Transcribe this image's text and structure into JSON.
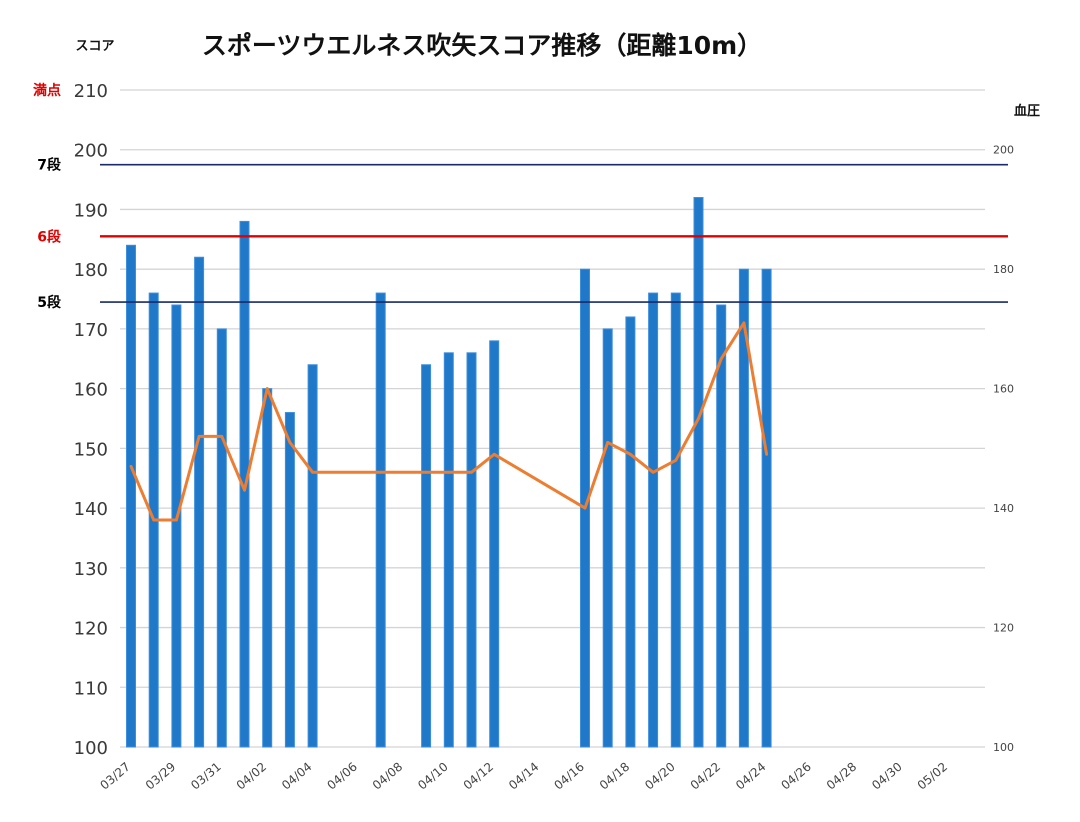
{
  "chart_data": {
    "type": "bar",
    "title": "スポーツウエルネス吹矢スコア推移（距離10m）",
    "ylabel": "スコア",
    "y2label": "血圧",
    "ylim": [
      100,
      210
    ],
    "y2lim": [
      100,
      210
    ],
    "yticks": [
      100,
      110,
      120,
      130,
      140,
      150,
      160,
      170,
      180,
      190,
      200,
      210
    ],
    "y2ticks": [
      100,
      120,
      140,
      160,
      180,
      200
    ],
    "xrange": [
      "2024-03-27",
      "2024-05-03"
    ],
    "xticks": [
      "03/27",
      "03/29",
      "03/31",
      "04/02",
      "04/04",
      "04/06",
      "04/08",
      "04/10",
      "04/12",
      "04/14",
      "04/16",
      "04/18",
      "04/20",
      "04/22",
      "04/24",
      "04/26",
      "04/28",
      "04/30",
      "05/02"
    ],
    "grid": true,
    "series": [
      {
        "kind": "bar",
        "color": "#1f78c8",
        "points": [
          {
            "x": "03/27",
            "y": 184
          },
          {
            "x": "03/28",
            "y": 176
          },
          {
            "x": "03/29",
            "y": 174
          },
          {
            "x": "03/30",
            "y": 182
          },
          {
            "x": "03/31",
            "y": 170
          },
          {
            "x": "04/01",
            "y": 188
          },
          {
            "x": "04/02",
            "y": 160
          },
          {
            "x": "04/03",
            "y": 156
          },
          {
            "x": "04/04",
            "y": 164
          },
          {
            "x": "04/07",
            "y": 176
          },
          {
            "x": "04/09",
            "y": 164
          },
          {
            "x": "04/10",
            "y": 166
          },
          {
            "x": "04/11",
            "y": 166
          },
          {
            "x": "04/12",
            "y": 168
          },
          {
            "x": "04/16",
            "y": 180
          },
          {
            "x": "04/17",
            "y": 170
          },
          {
            "x": "04/18",
            "y": 172
          },
          {
            "x": "04/19",
            "y": 176
          },
          {
            "x": "04/20",
            "y": 176
          },
          {
            "x": "04/21",
            "y": 192
          },
          {
            "x": "04/22",
            "y": 174
          },
          {
            "x": "04/23",
            "y": 180
          },
          {
            "x": "04/24",
            "y": 180
          }
        ]
      },
      {
        "kind": "line",
        "axis": "right",
        "color": "#ed7d31",
        "points": [
          {
            "x": "03/27",
            "y": 147
          },
          {
            "x": "03/28",
            "y": 138
          },
          {
            "x": "03/29",
            "y": 138
          },
          {
            "x": "03/30",
            "y": 152
          },
          {
            "x": "03/31",
            "y": 152
          },
          {
            "x": "04/01",
            "y": 143
          },
          {
            "x": "04/02",
            "y": 160
          },
          {
            "x": "04/03",
            "y": 151
          },
          {
            "x": "04/04",
            "y": 146
          },
          {
            "x": "04/07",
            "y": 146
          },
          {
            "x": "04/09",
            "y": 146
          },
          {
            "x": "04/10",
            "y": 146
          },
          {
            "x": "04/11",
            "y": 146
          },
          {
            "x": "04/12",
            "y": 149
          },
          {
            "x": "04/16",
            "y": 140
          },
          {
            "x": "04/17",
            "y": 151
          },
          {
            "x": "04/18",
            "y": 149
          },
          {
            "x": "04/19",
            "y": 146
          },
          {
            "x": "04/20",
            "y": 148
          },
          {
            "x": "04/21",
            "y": 155
          },
          {
            "x": "04/22",
            "y": 165
          },
          {
            "x": "04/23",
            "y": 171
          },
          {
            "x": "04/24",
            "y": 149
          }
        ]
      }
    ],
    "reference_lines": [
      {
        "label": "満点",
        "value": 210,
        "color": "#e00000",
        "line": false
      },
      {
        "label": "7段",
        "value": 197.5,
        "color": "#000000",
        "line_color": "#1a2a6c",
        "line": true
      },
      {
        "label": "6段",
        "value": 185.5,
        "color": "#e00000",
        "line_color": "#e00000",
        "line": true
      },
      {
        "label": "5段",
        "value": 174.5,
        "color": "#000000",
        "line_color": "#1a2a6c",
        "line": true
      }
    ]
  }
}
